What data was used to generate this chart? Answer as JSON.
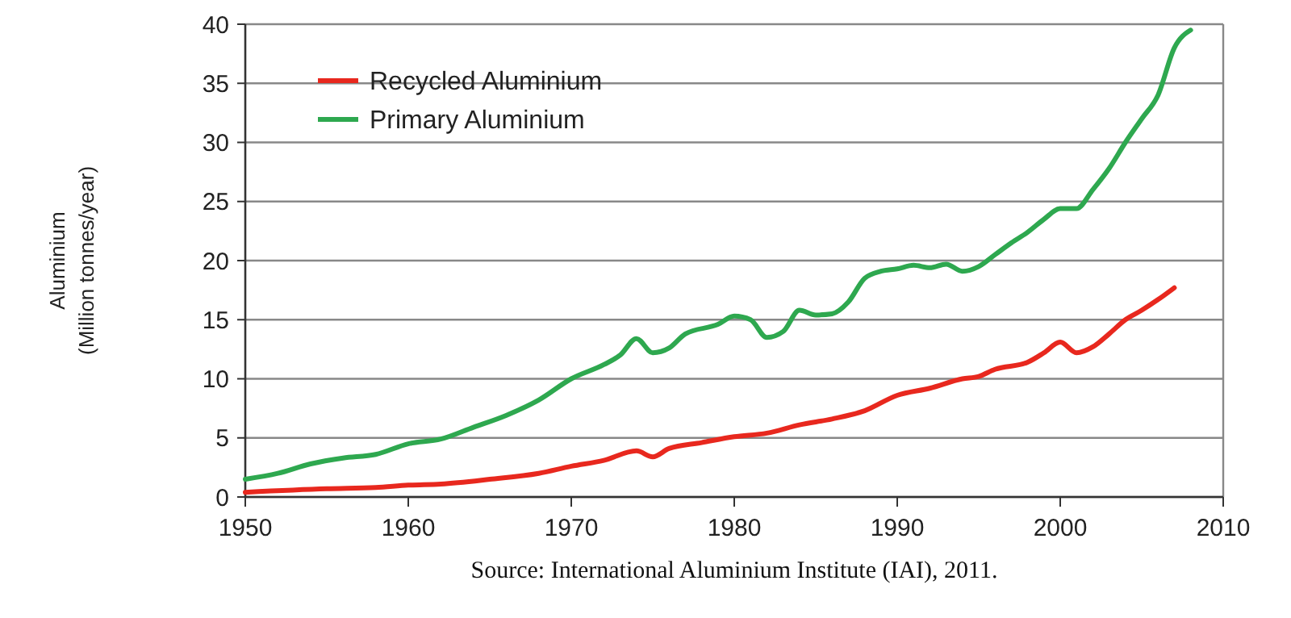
{
  "chart_data": {
    "type": "line",
    "ylabel": "Aluminium\n(Million tonnes/year)",
    "annotations": [
      "Source: International Aluminium Institute (IAI), 2011."
    ],
    "xlim": [
      1950,
      2010
    ],
    "xticks": [
      1950,
      1960,
      1970,
      1980,
      1990,
      2000,
      2010
    ],
    "ylim": [
      0,
      40
    ],
    "yticks": [
      0,
      5,
      10,
      15,
      20,
      25,
      30,
      35,
      40
    ],
    "grid": "y",
    "legend": "top left",
    "marker": "none",
    "line_style": "solid",
    "series": [
      {
        "name": "Recycled Aluminium",
        "color": "#e8281e",
        "x": [
          1950,
          1955,
          1958,
          1960,
          1962,
          1965,
          1968,
          1970,
          1972,
          1974,
          1975,
          1976,
          1978,
          1980,
          1982,
          1984,
          1986,
          1988,
          1990,
          1992,
          1994,
          1995,
          1996,
          1998,
          1999,
          2000,
          2001,
          2002,
          2003,
          2004,
          2005,
          2006,
          2007
        ],
        "values": [
          0.4,
          0.7,
          0.8,
          1.0,
          1.1,
          1.5,
          2.0,
          2.6,
          3.1,
          3.9,
          3.4,
          4.1,
          4.6,
          5.1,
          5.4,
          6.1,
          6.6,
          7.3,
          8.6,
          9.2,
          10.0,
          10.2,
          10.8,
          11.4,
          12.2,
          13.1,
          12.2,
          12.7,
          13.8,
          15.0,
          15.8,
          16.7,
          17.7
        ]
      },
      {
        "name": "Primary Aluminium",
        "color": "#2ea84f",
        "x": [
          1950,
          1952,
          1954,
          1956,
          1958,
          1960,
          1962,
          1964,
          1966,
          1968,
          1970,
          1972,
          1973,
          1974,
          1975,
          1976,
          1977,
          1979,
          1980,
          1981,
          1982,
          1983,
          1984,
          1985,
          1986,
          1987,
          1988,
          1989,
          1990,
          1991,
          1992,
          1993,
          1994,
          1995,
          1996,
          1997,
          1998,
          1999,
          2000,
          2001,
          2002,
          2003,
          2004,
          2005,
          2006,
          2007,
          2008
        ],
        "values": [
          1.5,
          2.0,
          2.8,
          3.3,
          3.6,
          4.5,
          4.9,
          5.9,
          6.9,
          8.2,
          10.0,
          11.2,
          12.0,
          13.4,
          12.2,
          12.6,
          13.8,
          14.6,
          15.3,
          15.0,
          13.5,
          14.0,
          15.8,
          15.4,
          15.5,
          16.5,
          18.5,
          19.1,
          19.3,
          19.6,
          19.4,
          19.7,
          19.1,
          19.5,
          20.5,
          21.5,
          22.4,
          23.5,
          24.4,
          24.4,
          26.0,
          27.8,
          30.0,
          32.0,
          34.0,
          38.0,
          39.5
        ]
      }
    ]
  }
}
